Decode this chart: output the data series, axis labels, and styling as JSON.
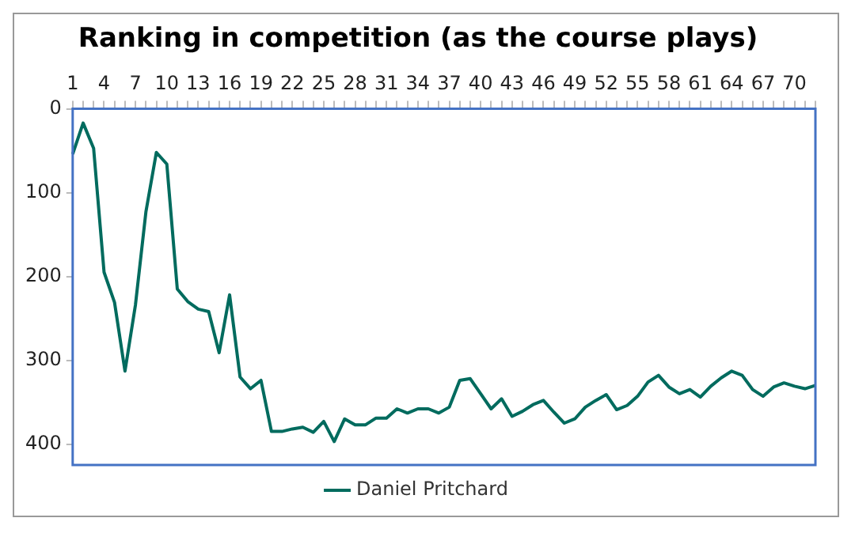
{
  "chart_data": {
    "type": "line",
    "title": "Ranking in competition (as the course plays)",
    "categories": [
      "1",
      null,
      null,
      "4",
      null,
      null,
      "7",
      null,
      null,
      "10",
      null,
      null,
      "13",
      null,
      null,
      "16",
      null,
      null,
      "19",
      null,
      null,
      "22",
      null,
      null,
      "25",
      null,
      null,
      "28",
      null,
      null,
      "31",
      null,
      null,
      "34",
      null,
      null,
      "37",
      null,
      null,
      "40",
      null,
      null,
      "43",
      null,
      null,
      "46",
      null,
      null,
      "49",
      null,
      null,
      "52",
      null,
      null,
      "55",
      null,
      null,
      "58",
      null,
      null,
      "61",
      null,
      null,
      "64",
      null,
      null,
      "67",
      null,
      null,
      "70",
      null,
      null
    ],
    "series": [
      {
        "name": "Daniel Pritchard",
        "color": "#006b5e",
        "values": [
          54,
          17,
          47,
          195,
          231,
          313,
          234,
          123,
          52,
          66,
          215,
          230,
          239,
          242,
          291,
          222,
          320,
          334,
          324,
          385,
          385,
          382,
          380,
          386,
          373,
          397,
          370,
          377,
          377,
          369,
          369,
          358,
          363,
          358,
          358,
          363,
          356,
          324,
          322,
          340,
          358,
          346,
          367,
          361,
          353,
          348,
          362,
          375,
          370,
          356,
          348,
          341,
          359,
          354,
          343,
          326,
          318,
          332,
          340,
          335,
          344,
          331,
          321,
          313,
          318,
          335,
          343,
          332,
          327,
          331,
          334,
          330
        ]
      }
    ],
    "ylim": [
      425,
      0
    ],
    "yticks": [
      0,
      100,
      200,
      300,
      400
    ],
    "grid": false,
    "legend": "bottom",
    "marker": "none",
    "line_style": "solid"
  }
}
